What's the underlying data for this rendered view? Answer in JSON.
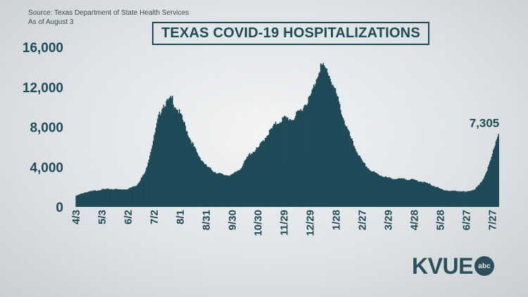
{
  "source_line1": "Source: Texas Department of State Health Services",
  "source_line2": "As of August 3",
  "title": "TEXAS COVID-19 HOSPITALIZATIONS",
  "logo": {
    "text": "KVUE",
    "badge": "abc"
  },
  "colors": {
    "bar": "#1f4a57",
    "text": "#1f4a57",
    "background": "#e4e8ea"
  },
  "chart_data": {
    "type": "area",
    "title": "TEXAS COVID-19 HOSPITALIZATIONS",
    "y_ticks": [
      "16,000",
      "12,000",
      "8,000",
      "4,000",
      "0"
    ],
    "ylim": [
      0,
      16000
    ],
    "x_ticks": [
      "4/3",
      "5/3",
      "6/2",
      "7/2",
      "8/1",
      "8/31",
      "9/30",
      "10/30",
      "11/29",
      "12/29",
      "1/28",
      "2/27",
      "3/29",
      "4/28",
      "5/28",
      "6/27",
      "7/27"
    ],
    "x_tick_days": [
      0,
      30,
      60,
      90,
      120,
      150,
      180,
      210,
      240,
      270,
      300,
      330,
      360,
      390,
      420,
      450,
      480
    ],
    "xlim_days": [
      0,
      487
    ],
    "series": [
      {
        "x_days": [
          0,
          10,
          20,
          30,
          40,
          50,
          60,
          70,
          80,
          90,
          95,
          100,
          105,
          108,
          111,
          113,
          116,
          120,
          125,
          130,
          140,
          150,
          160,
          170,
          180,
          190,
          200,
          210,
          220,
          230,
          240,
          250,
          260,
          270,
          275,
          280,
          282,
          285,
          290,
          295,
          300,
          305,
          310,
          320,
          330,
          340,
          350,
          360,
          370,
          380,
          390,
          400,
          410,
          420,
          430,
          440,
          450,
          460,
          465,
          470,
          475,
          480,
          484,
          487
        ],
        "values": [
          1100,
          1450,
          1600,
          1750,
          1800,
          1750,
          1800,
          2200,
          3500,
          7000,
          9000,
          10200,
          10500,
          10700,
          10900,
          10300,
          9900,
          9300,
          8300,
          7100,
          5300,
          4100,
          3500,
          3200,
          3200,
          3900,
          5300,
          5900,
          7200,
          8300,
          8900,
          8800,
          9800,
          11000,
          12300,
          13700,
          14200,
          14000,
          13600,
          12500,
          11300,
          9800,
          8400,
          6200,
          4500,
          3600,
          3200,
          2900,
          2800,
          2800,
          2700,
          2500,
          2200,
          1800,
          1600,
          1600,
          1500,
          1800,
          2200,
          2900,
          3900,
          5200,
          6600,
          7305
        ]
      }
    ],
    "annotations": [
      {
        "text": "7,305",
        "x_day": 487,
        "value": 7305
      }
    ]
  }
}
